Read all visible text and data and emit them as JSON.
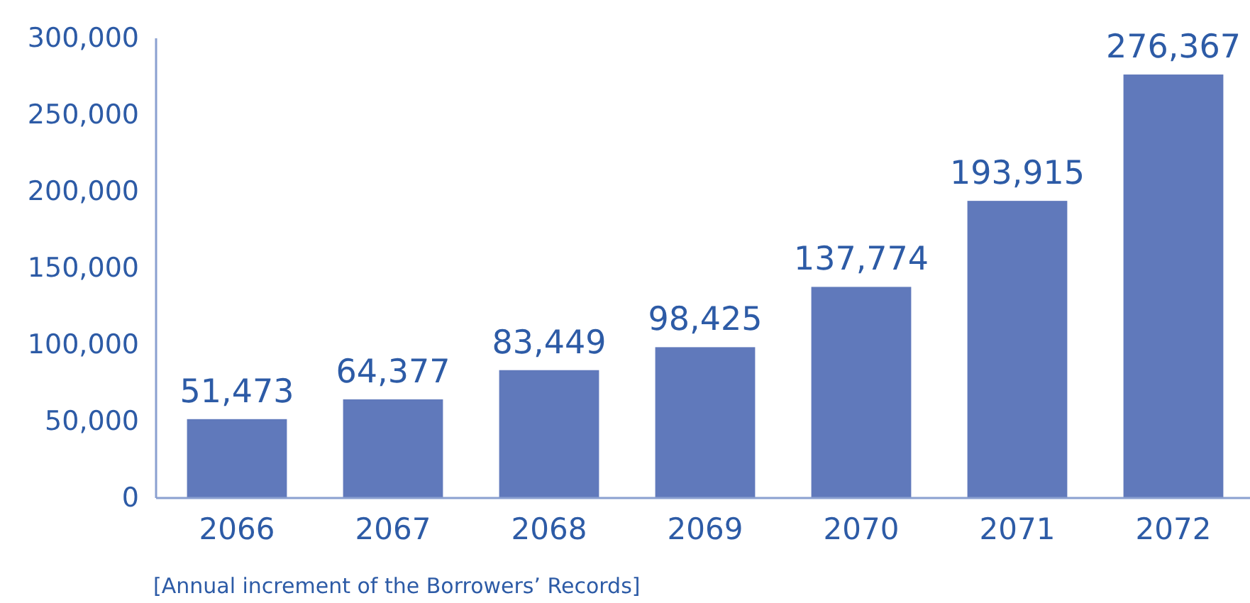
{
  "chart_data": {
    "type": "bar",
    "categories": [
      "2066",
      "2067",
      "2068",
      "2069",
      "2070",
      "2071",
      "2072"
    ],
    "values": [
      51473,
      64377,
      83449,
      98425,
      137774,
      193915,
      276367
    ],
    "color": "#6079bb",
    "ylim": [
      0,
      300000
    ],
    "yticks": [
      {
        "value": 0,
        "label": "0"
      },
      {
        "value": 50000,
        "label": "50,000"
      },
      {
        "value": 100000,
        "label": "100,000"
      },
      {
        "value": 150000,
        "label": "150,000"
      },
      {
        "value": 200000,
        "label": "200,000"
      },
      {
        "value": 250000,
        "label": "250,000"
      },
      {
        "value": 300000,
        "label": "300,000"
      }
    ],
    "value_labels": [
      "51,473",
      "64,377",
      "83,449",
      "98,425",
      "137,774",
      "193,915",
      "276,367"
    ],
    "annotations": [
      "[Annual increment of the Borrowers’ Records]"
    ]
  }
}
